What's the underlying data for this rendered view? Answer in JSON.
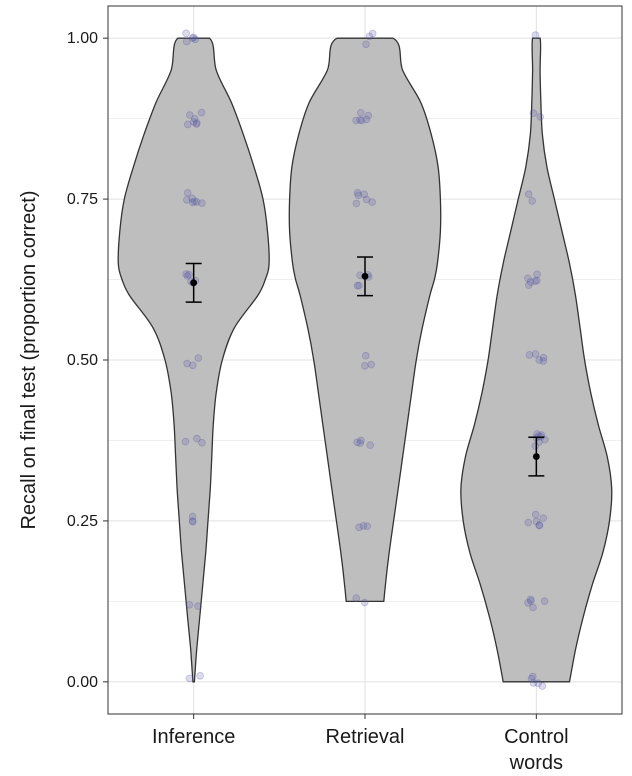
{
  "chart_data": {
    "type": "violin",
    "ylabel": "Recall on final test (proportion correct)",
    "ylim": [
      -0.05,
      1.05
    ],
    "y_ticks": [
      "0.00",
      "0.25",
      "0.50",
      "0.75",
      "1.00"
    ],
    "y_tick_values": [
      0,
      0.25,
      0.5,
      0.75,
      1.0
    ],
    "categories": [
      {
        "lines": [
          "Inference"
        ]
      },
      {
        "lines": [
          "Retrieval"
        ]
      },
      {
        "lines": [
          "Control",
          "words"
        ]
      }
    ],
    "grid": true,
    "colors": {
      "violin_fill": "#bebebe",
      "violin_stroke": "#333333",
      "points": "#5a5aa8",
      "mean": "#000000"
    },
    "series": [
      {
        "mean": 0.62,
        "ci_low": 0.59,
        "ci_high": 0.65,
        "density": [
          [
            0.0,
            0.01
          ],
          [
            0.05,
            0.04
          ],
          [
            0.1,
            0.08
          ],
          [
            0.15,
            0.12
          ],
          [
            0.2,
            0.16
          ],
          [
            0.25,
            0.19
          ],
          [
            0.3,
            0.22
          ],
          [
            0.35,
            0.24
          ],
          [
            0.4,
            0.26
          ],
          [
            0.45,
            0.3
          ],
          [
            0.5,
            0.38
          ],
          [
            0.55,
            0.54
          ],
          [
            0.6,
            0.85
          ],
          [
            0.625,
            0.95
          ],
          [
            0.65,
            1.0
          ],
          [
            0.7,
            0.98
          ],
          [
            0.75,
            0.92
          ],
          [
            0.8,
            0.8
          ],
          [
            0.85,
            0.66
          ],
          [
            0.9,
            0.5
          ],
          [
            0.95,
            0.3
          ],
          [
            1.0,
            0.21
          ]
        ],
        "points": [
          1.0,
          1.0,
          1.0,
          1.0,
          1.0,
          0.875,
          0.875,
          0.875,
          0.875,
          0.875,
          0.875,
          0.875,
          0.75,
          0.75,
          0.75,
          0.75,
          0.75,
          0.75,
          0.75,
          0.625,
          0.625,
          0.625,
          0.625,
          0.625,
          0.625,
          0.5,
          0.5,
          0.5,
          0.375,
          0.375,
          0.375,
          0.25,
          0.25,
          0.25,
          0.125,
          0.125,
          0.0,
          0.0
        ]
      },
      {
        "mean": 0.63,
        "ci_low": 0.6,
        "ci_high": 0.66,
        "density": [
          [
            0.125,
            0.25
          ],
          [
            0.15,
            0.27
          ],
          [
            0.2,
            0.32
          ],
          [
            0.25,
            0.38
          ],
          [
            0.3,
            0.44
          ],
          [
            0.35,
            0.5
          ],
          [
            0.4,
            0.56
          ],
          [
            0.45,
            0.62
          ],
          [
            0.5,
            0.68
          ],
          [
            0.55,
            0.76
          ],
          [
            0.6,
            0.86
          ],
          [
            0.625,
            0.92
          ],
          [
            0.65,
            0.96
          ],
          [
            0.7,
            1.0
          ],
          [
            0.75,
            1.0
          ],
          [
            0.8,
            0.97
          ],
          [
            0.85,
            0.88
          ],
          [
            0.9,
            0.74
          ],
          [
            0.95,
            0.5
          ],
          [
            1.0,
            0.37
          ]
        ],
        "points": [
          1.0,
          1.0,
          1.0,
          0.875,
          0.875,
          0.875,
          0.875,
          0.875,
          0.875,
          0.75,
          0.75,
          0.75,
          0.75,
          0.75,
          0.75,
          0.625,
          0.625,
          0.625,
          0.625,
          0.625,
          0.5,
          0.5,
          0.5,
          0.375,
          0.375,
          0.375,
          0.375,
          0.25,
          0.25,
          0.25,
          0.125,
          0.125
        ]
      },
      {
        "mean": 0.35,
        "ci_low": 0.32,
        "ci_high": 0.38,
        "density": [
          [
            0.0,
            0.44
          ],
          [
            0.05,
            0.52
          ],
          [
            0.1,
            0.62
          ],
          [
            0.15,
            0.74
          ],
          [
            0.2,
            0.88
          ],
          [
            0.25,
            0.97
          ],
          [
            0.3,
            1.0
          ],
          [
            0.35,
            0.94
          ],
          [
            0.4,
            0.82
          ],
          [
            0.45,
            0.72
          ],
          [
            0.5,
            0.64
          ],
          [
            0.55,
            0.58
          ],
          [
            0.6,
            0.52
          ],
          [
            0.65,
            0.44
          ],
          [
            0.7,
            0.34
          ],
          [
            0.75,
            0.24
          ],
          [
            0.8,
            0.14
          ],
          [
            0.85,
            0.08
          ],
          [
            0.9,
            0.06
          ],
          [
            0.95,
            0.05
          ],
          [
            1.0,
            0.05
          ]
        ],
        "points": [
          1.0,
          0.875,
          0.875,
          0.75,
          0.75,
          0.625,
          0.625,
          0.625,
          0.625,
          0.625,
          0.625,
          0.5,
          0.5,
          0.5,
          0.5,
          0.5,
          0.375,
          0.375,
          0.375,
          0.375,
          0.375,
          0.375,
          0.375,
          0.375,
          0.25,
          0.25,
          0.25,
          0.25,
          0.25,
          0.25,
          0.125,
          0.125,
          0.125,
          0.125,
          0.125,
          0.0,
          0.0,
          0.0,
          0.0,
          0.0
        ]
      }
    ]
  }
}
